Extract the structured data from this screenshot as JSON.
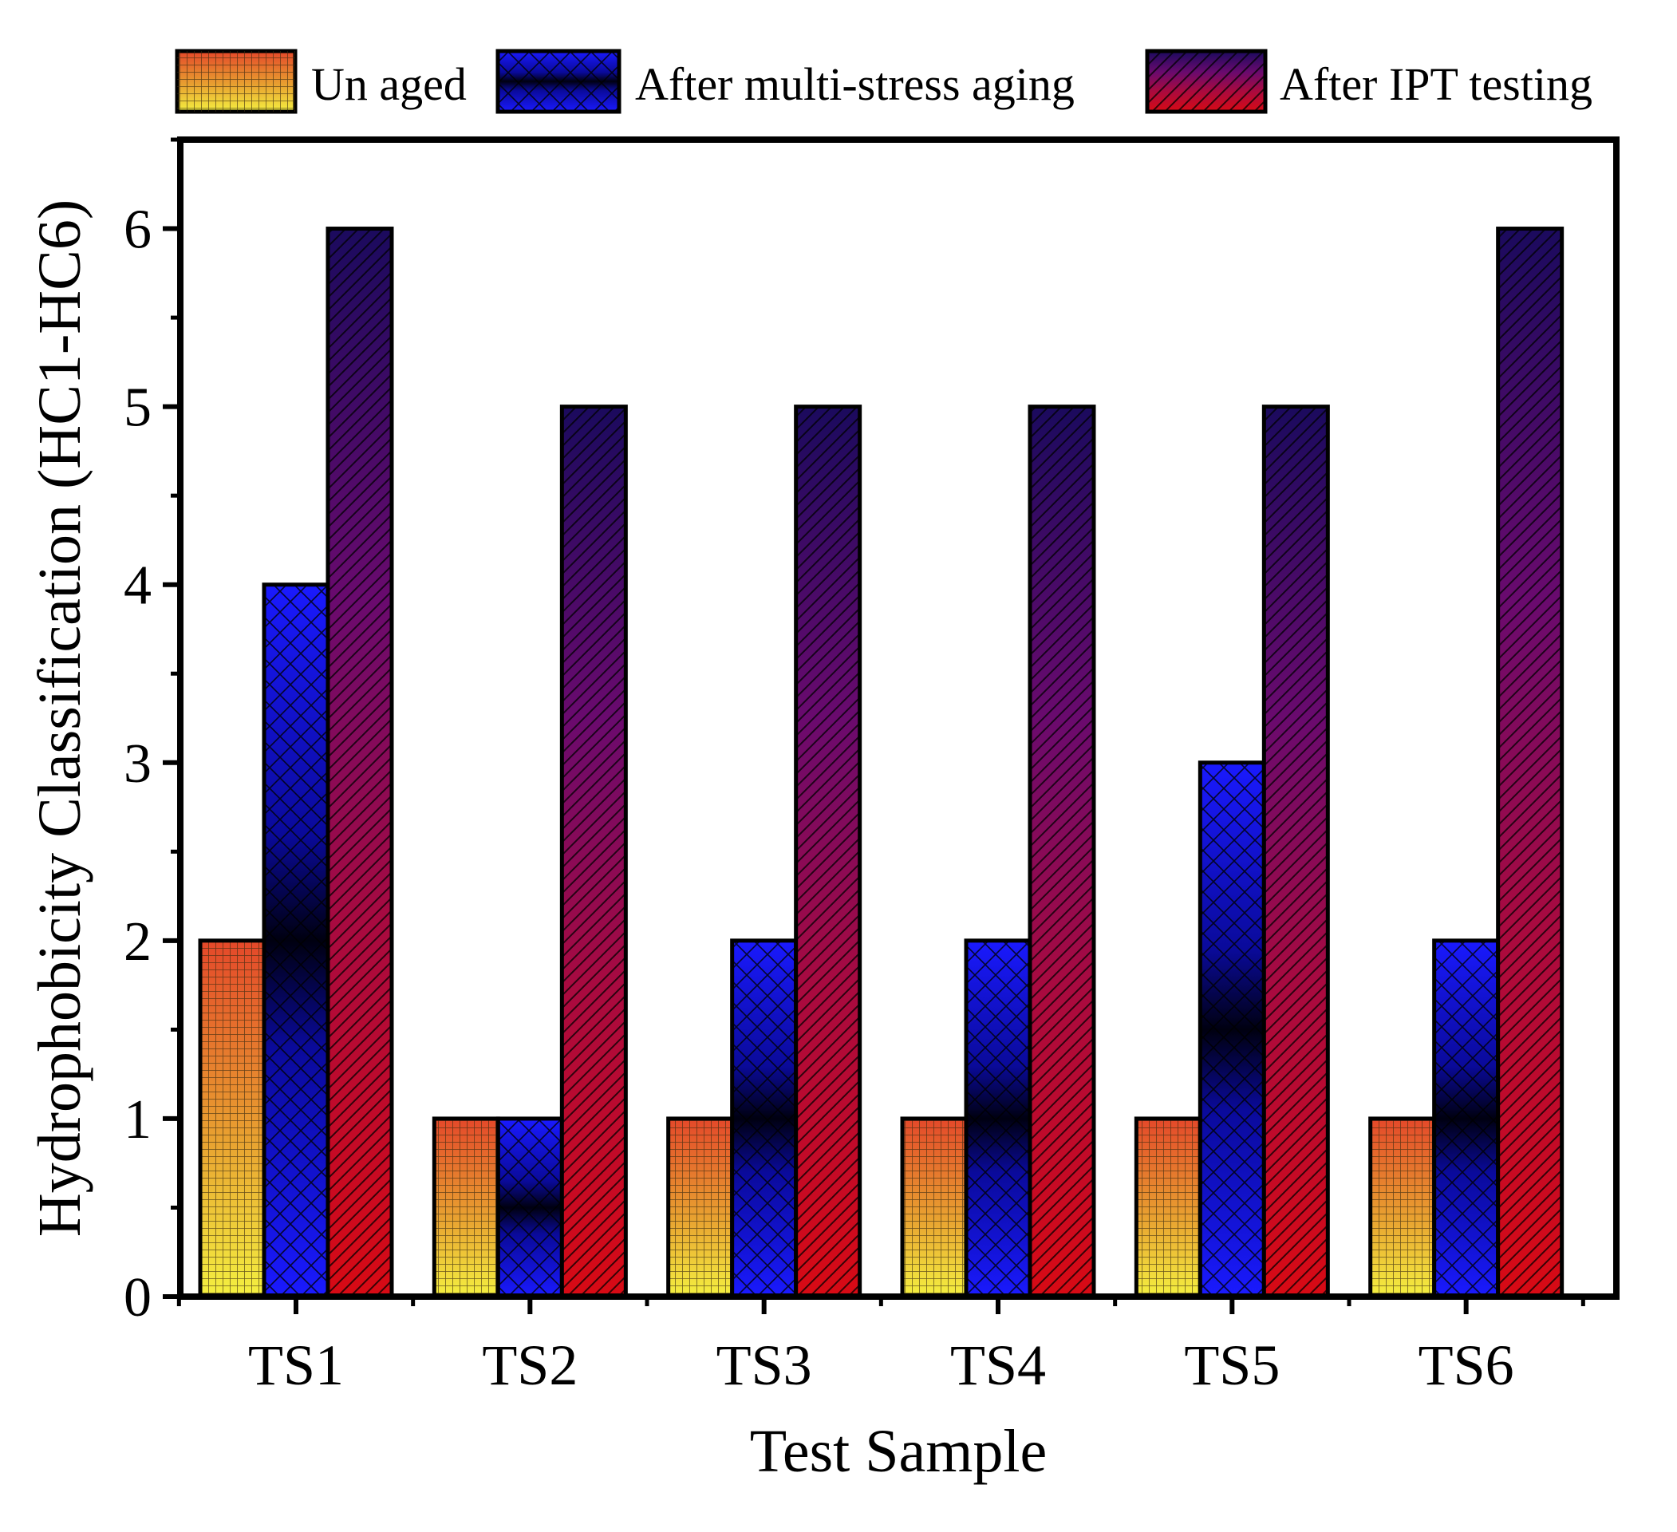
{
  "chart_data": {
    "type": "bar",
    "title": "",
    "xlabel": "Test Sample",
    "ylabel": "Hydrophobicity Classification (HC1-HC6)",
    "categories": [
      "TS1",
      "TS2",
      "TS3",
      "TS4",
      "TS5",
      "TS6"
    ],
    "series": [
      {
        "name": "Un aged",
        "values": [
          2,
          1,
          1,
          1,
          1,
          1
        ]
      },
      {
        "name": "After multi-stress aging",
        "values": [
          4,
          1,
          2,
          2,
          3,
          2
        ]
      },
      {
        "name": "After IPT testing",
        "values": [
          6,
          5,
          5,
          5,
          5,
          6
        ]
      }
    ],
    "ylim": [
      0,
      6.5
    ],
    "yticks": [
      "0",
      "1",
      "2",
      "3",
      "4",
      "5",
      "6"
    ],
    "grid": false,
    "legend_position": "top"
  }
}
